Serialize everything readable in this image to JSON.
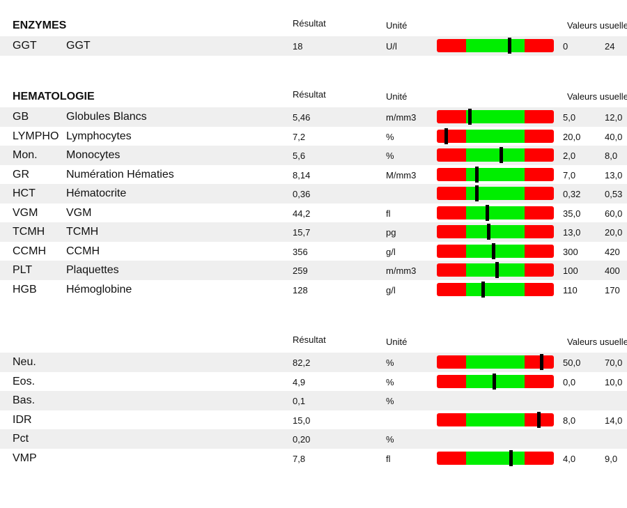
{
  "sections": [
    {
      "title": "ENZYMES",
      "headers": {
        "result": "Résultat",
        "unit": "Unité",
        "ref": "Valeurs usuelles"
      },
      "rows": [
        {
          "code": "GGT",
          "name": "GGT",
          "result": "18",
          "unit": "U/l",
          "min": "0",
          "max": "24",
          "gauge": true,
          "level": 0.62
        }
      ]
    },
    {
      "title": "HEMATOLOGIE",
      "headers": {
        "result": "Résultat",
        "unit": "Unité",
        "ref": "Valeurs usuelles"
      },
      "rows": [
        {
          "code": "GB",
          "name": "Globules Blancs",
          "result": "5,46",
          "unit": "m/mm3",
          "min": "5,0",
          "max": "12,0",
          "gauge": true,
          "level": 0.28
        },
        {
          "code": "LYMPHO",
          "name": "Lymphocytes",
          "result": "7,2",
          "unit": "%",
          "min": "20,0",
          "max": "40,0",
          "gauge": true,
          "level": 0.08
        },
        {
          "code": "Mon.",
          "name": "Monocytes",
          "result": "5,6",
          "unit": "%",
          "min": "2,0",
          "max": "8,0",
          "gauge": true,
          "level": 0.55
        },
        {
          "code": "GR",
          "name": "Numération Hématies",
          "result": "8,14",
          "unit": "M/mm3",
          "min": "7,0",
          "max": "13,0",
          "gauge": true,
          "level": 0.34
        },
        {
          "code": "HCT",
          "name": "Hématocrite",
          "result": "0,36",
          "unit": "",
          "min": "0,32",
          "max": "0,53",
          "gauge": true,
          "level": 0.34
        },
        {
          "code": "VGM",
          "name": "VGM",
          "result": "44,2",
          "unit": "fl",
          "min": "35,0",
          "max": "60,0",
          "gauge": true,
          "level": 0.43
        },
        {
          "code": "TCMH",
          "name": "TCMH",
          "result": "15,7",
          "unit": "pg",
          "min": "13,0",
          "max": "20,0",
          "gauge": true,
          "level": 0.44
        },
        {
          "code": "CCMH",
          "name": "CCMH",
          "result": "356",
          "unit": "g/l",
          "min": "300",
          "max": "420",
          "gauge": true,
          "level": 0.48
        },
        {
          "code": "PLT",
          "name": "Plaquettes",
          "result": "259",
          "unit": "m/mm3",
          "min": "100",
          "max": "400",
          "gauge": true,
          "level": 0.51
        },
        {
          "code": "HGB",
          "name": "Hémoglobine",
          "result": "128",
          "unit": "g/l",
          "min": "110",
          "max": "170",
          "gauge": true,
          "level": 0.39
        }
      ]
    },
    {
      "title": "",
      "headers": {
        "result": "Résultat",
        "unit": "Unité",
        "ref": "Valeurs usuelles"
      },
      "rows": [
        {
          "code": "Neu.",
          "name": "",
          "result": "82,2",
          "unit": "%",
          "min": "50,0",
          "max": "70,0",
          "gauge": true,
          "level": 0.89
        },
        {
          "code": "Eos.",
          "name": "",
          "result": "4,9",
          "unit": "%",
          "min": "0,0",
          "max": "10,0",
          "gauge": true,
          "level": 0.49
        },
        {
          "code": "Bas.",
          "name": "",
          "result": "0,1",
          "unit": "%",
          "min": "",
          "max": "",
          "gauge": false,
          "level": 0
        },
        {
          "code": "IDR",
          "name": "",
          "result": "15,0",
          "unit": "",
          "min": "8,0",
          "max": "14,0",
          "gauge": true,
          "level": 0.87
        },
        {
          "code": "Pct",
          "name": "",
          "result": "0,20",
          "unit": "%",
          "min": "",
          "max": "",
          "gauge": false,
          "level": 0
        },
        {
          "code": "VMP",
          "name": "",
          "result": "7,8",
          "unit": "fl",
          "min": "4,0",
          "max": "9,0",
          "gauge": true,
          "level": 0.63
        }
      ]
    }
  ],
  "colors": {
    "low": "#ff0000",
    "normal": "#00ee00",
    "high": "#ff0000",
    "marker": "#000000",
    "row_shade": "#efefef"
  }
}
